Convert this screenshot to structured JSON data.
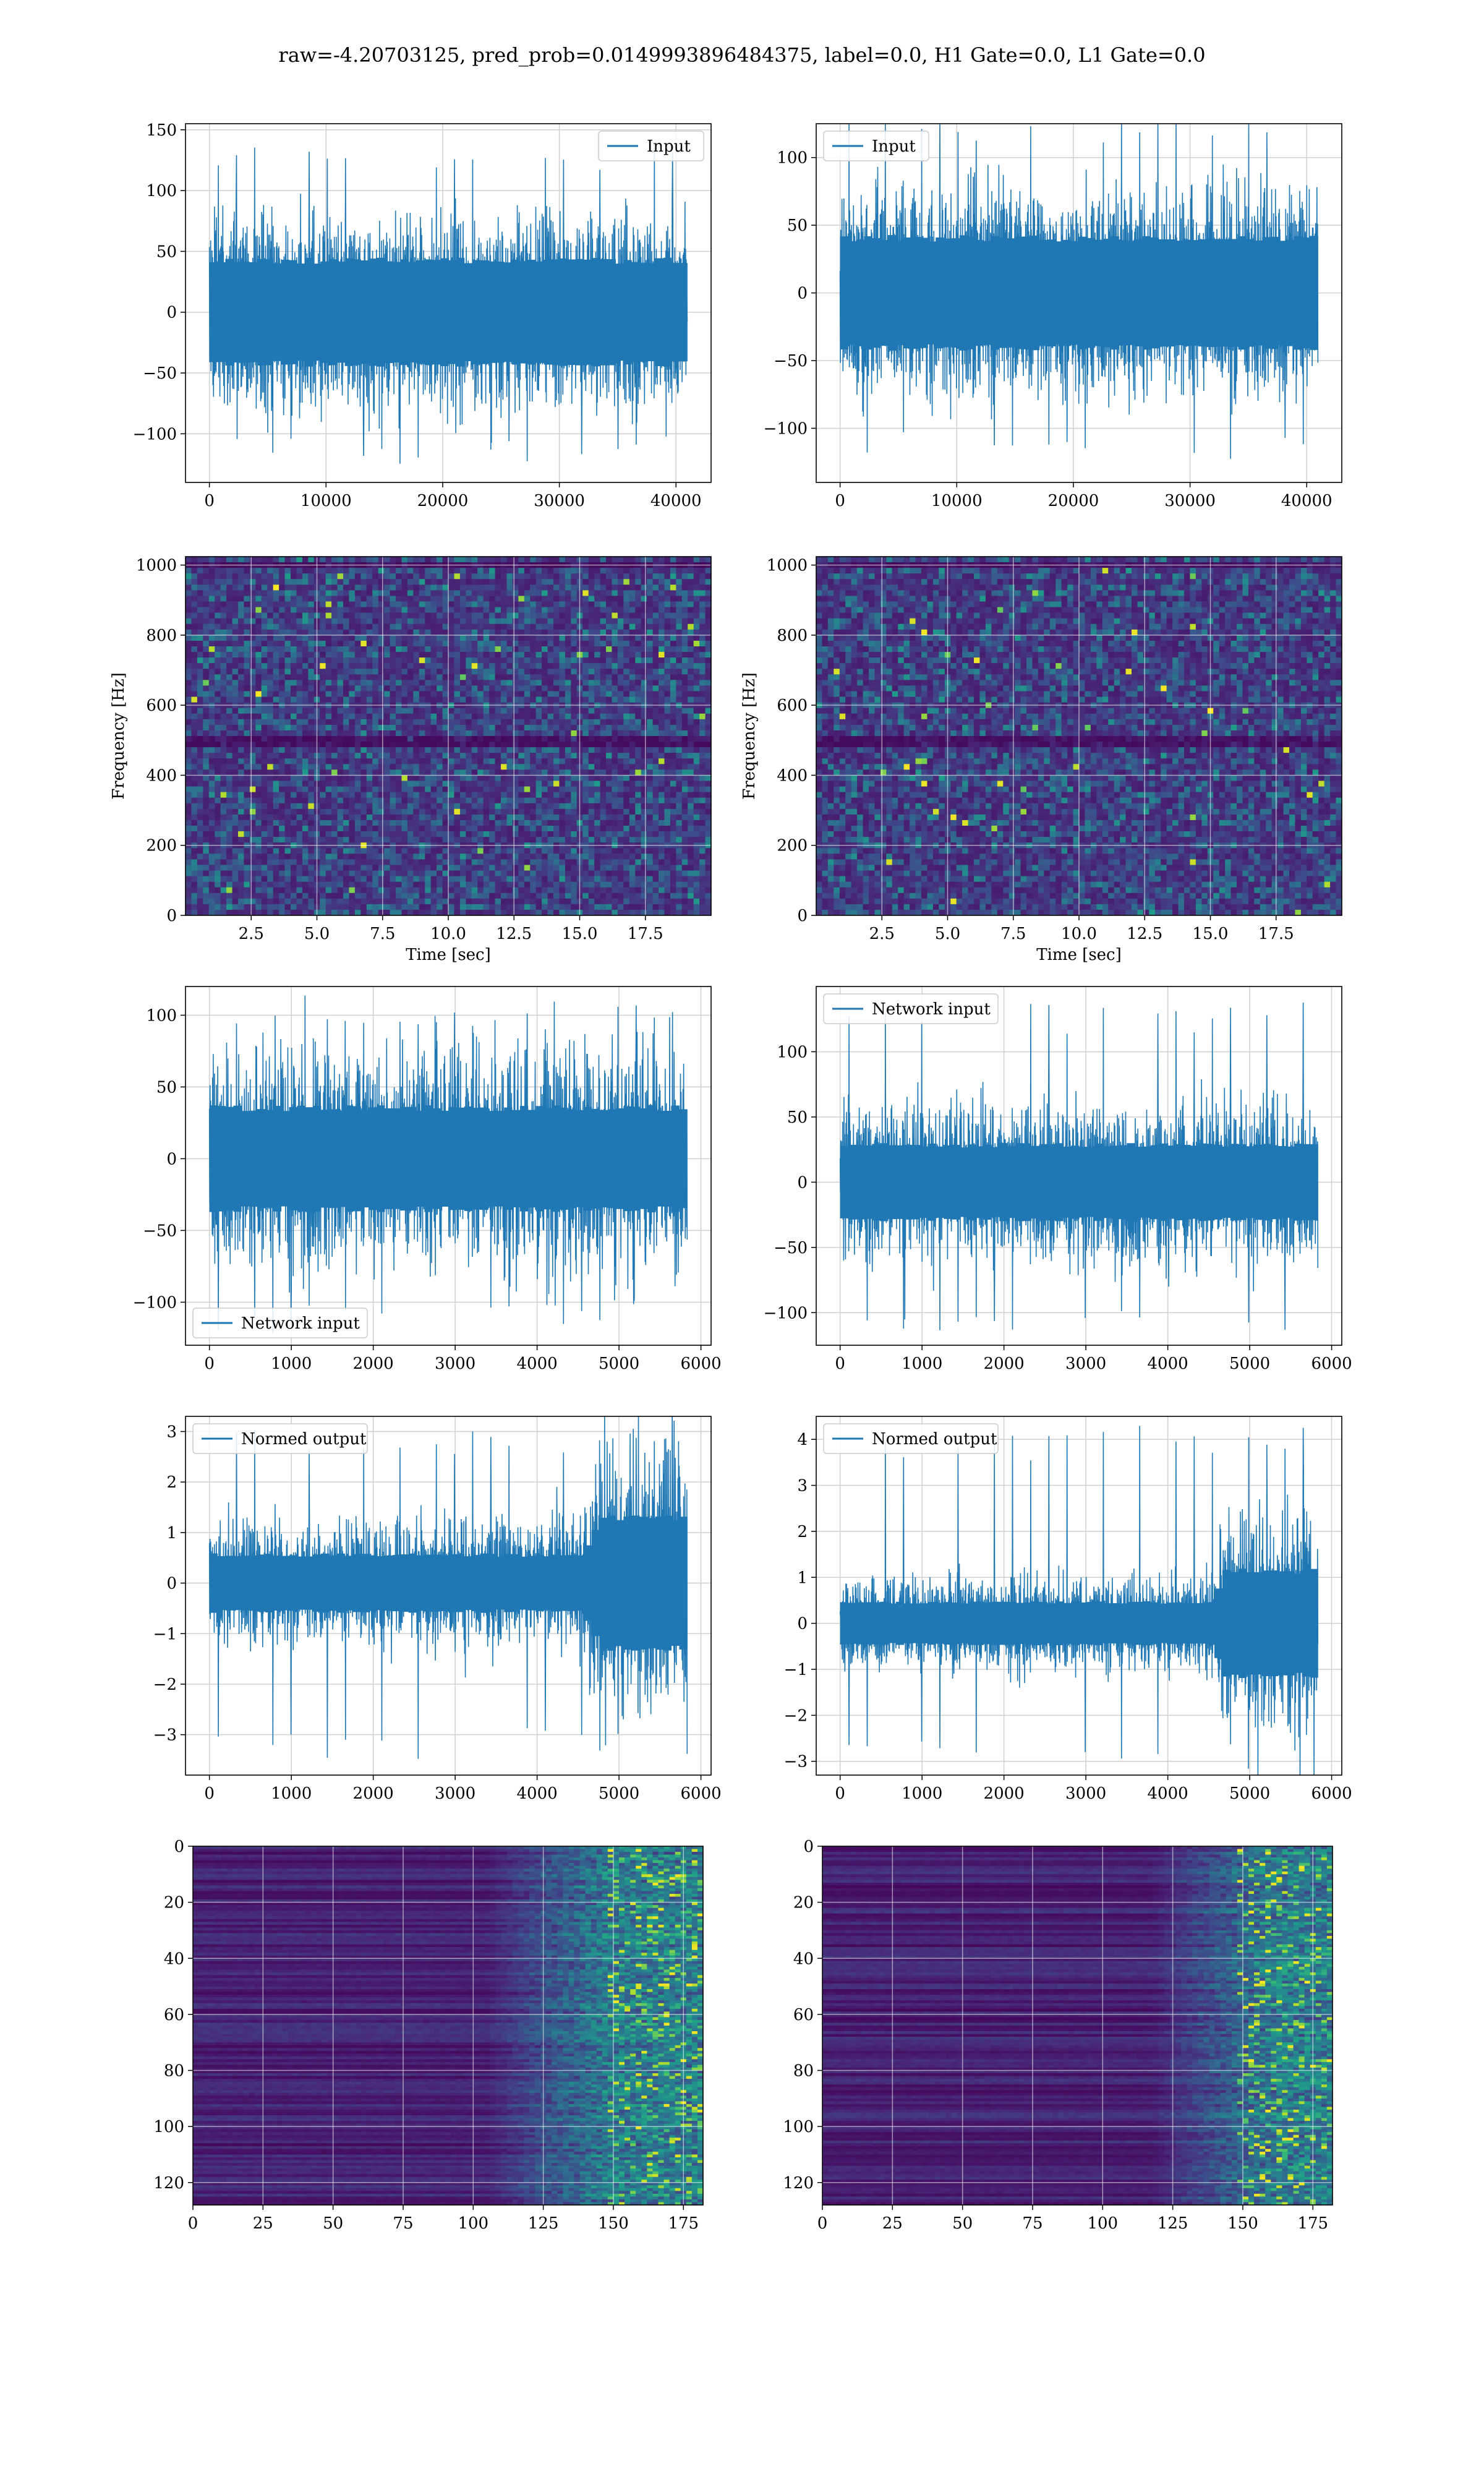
{
  "suptitle": "raw=-4.20703125, pred_prob=0.0149993896484375, label=0.0, H1 Gate=0.0, L1 Gate=0.0",
  "colors": {
    "series": "#1f77b4",
    "grid": "#d0d0d0",
    "axis": "#000000"
  },
  "chart_data": [
    {
      "type": "line",
      "panel": "row1-left",
      "legend": "Input",
      "legend_loc": "upper right",
      "x_range": [
        0,
        40960
      ],
      "xlim": [
        -2048,
        43008
      ],
      "ylim": [
        -140,
        155
      ],
      "xticks": [
        0,
        10000,
        20000,
        30000,
        40000
      ],
      "yticks": [
        -100,
        -50,
        0,
        50,
        100,
        150
      ],
      "signal": {
        "base_amp": 42,
        "burst_amp": 40,
        "spike_max": 140,
        "spike_min": -125,
        "trend": [
          [
            0,
            1.0
          ],
          [
            1,
            1.0
          ]
        ]
      },
      "grid": true,
      "xlabel": "",
      "ylabel": ""
    },
    {
      "type": "line",
      "panel": "row1-right",
      "legend": "Input",
      "legend_loc": "upper left",
      "x_range": [
        0,
        40960
      ],
      "xlim": [
        -2048,
        43008
      ],
      "ylim": [
        -140,
        125
      ],
      "xticks": [
        0,
        10000,
        20000,
        30000,
        40000
      ],
      "yticks": [
        -100,
        -50,
        0,
        50,
        100
      ],
      "signal": {
        "base_amp": 40,
        "burst_amp": 38,
        "spike_max": 135,
        "spike_min": -125,
        "trend": [
          [
            0,
            1.0
          ],
          [
            1,
            1.0
          ]
        ]
      },
      "grid": true,
      "xlabel": "",
      "ylabel": ""
    },
    {
      "type": "heatmap",
      "panel": "row2-left",
      "style": "spectrogram",
      "xlim": [
        0,
        20
      ],
      "ylim": [
        0,
        1024
      ],
      "xticks": [
        2.5,
        5.0,
        7.5,
        10.0,
        12.5,
        15.0,
        17.5
      ],
      "xticklabels": [
        "2.5",
        "5.0",
        "7.5",
        "10.0",
        "12.5",
        "15.0",
        "17.5"
      ],
      "yticks": [
        0,
        200,
        400,
        600,
        800,
        1000
      ],
      "xlabel": "Time [sec]",
      "ylabel": "Frequency [Hz]",
      "grid": true,
      "dark_bands_hz": [
        500,
        1000
      ]
    },
    {
      "type": "heatmap",
      "panel": "row2-right",
      "style": "spectrogram",
      "xlim": [
        0,
        20
      ],
      "ylim": [
        0,
        1024
      ],
      "xticks": [
        2.5,
        5.0,
        7.5,
        10.0,
        12.5,
        15.0,
        17.5
      ],
      "xticklabels": [
        "2.5",
        "5.0",
        "7.5",
        "10.0",
        "12.5",
        "15.0",
        "17.5"
      ],
      "yticks": [
        0,
        200,
        400,
        600,
        800,
        1000
      ],
      "xlabel": "Time [sec]",
      "ylabel": "Frequency [Hz]",
      "grid": true,
      "dark_bands_hz": [
        500,
        1000
      ]
    },
    {
      "type": "line",
      "panel": "row3-left",
      "legend": "Network input",
      "legend_loc": "lower left",
      "x_range": [
        0,
        5832
      ],
      "xlim": [
        -292,
        6124
      ],
      "ylim": [
        -130,
        120
      ],
      "xticks": [
        0,
        1000,
        2000,
        3000,
        4000,
        5000,
        6000
      ],
      "yticks": [
        -100,
        -50,
        0,
        50,
        100
      ],
      "signal": {
        "base_amp": 35,
        "burst_amp": 45,
        "spike_max": 108,
        "spike_min": -122,
        "trend": [
          [
            0,
            1.0
          ],
          [
            1,
            1.0
          ]
        ]
      },
      "grid": true,
      "xlabel": "",
      "ylabel": ""
    },
    {
      "type": "line",
      "panel": "row3-right",
      "legend": "Network input",
      "legend_loc": "upper left",
      "x_range": [
        0,
        5832
      ],
      "xlim": [
        -292,
        6124
      ],
      "ylim": [
        -125,
        150
      ],
      "xticks": [
        0,
        1000,
        2000,
        3000,
        4000,
        5000,
        6000
      ],
      "yticks": [
        -100,
        -50,
        0,
        50,
        100
      ],
      "signal": {
        "base_amp": 28,
        "burst_amp": 38,
        "spike_max": 138,
        "spike_min": -115,
        "trend": [
          [
            0,
            1.0
          ],
          [
            1,
            1.0
          ]
        ]
      },
      "grid": true,
      "xlabel": "",
      "ylabel": ""
    },
    {
      "type": "line",
      "panel": "row4-left",
      "legend": "Normed output",
      "legend_loc": "upper left",
      "x_range": [
        0,
        5832
      ],
      "xlim": [
        -292,
        6124
      ],
      "ylim": [
        -3.8,
        3.3
      ],
      "xticks": [
        0,
        1000,
        2000,
        3000,
        4000,
        5000,
        6000
      ],
      "yticks": [
        -3,
        -2,
        -1,
        0,
        1,
        2,
        3
      ],
      "signal": {
        "base_amp": 0.55,
        "burst_amp": 0.7,
        "spike_max": 3.05,
        "spike_min": -3.5,
        "trend": [
          [
            0,
            1.0
          ],
          [
            0.78,
            1.0
          ],
          [
            0.82,
            2.3
          ],
          [
            1.0,
            2.3
          ]
        ]
      },
      "grid": true,
      "xlabel": "",
      "ylabel": ""
    },
    {
      "type": "line",
      "panel": "row4-right",
      "legend": "Normed output",
      "legend_loc": "upper left",
      "x_range": [
        0,
        5832
      ],
      "xlim": [
        -292,
        6124
      ],
      "ylim": [
        -3.3,
        4.5
      ],
      "xticks": [
        0,
        1000,
        2000,
        3000,
        4000,
        5000,
        6000
      ],
      "yticks": [
        -3,
        -2,
        -1,
        0,
        1,
        2,
        3,
        4
      ],
      "signal": {
        "base_amp": 0.45,
        "burst_amp": 0.6,
        "spike_max": 4.3,
        "spike_min": -2.95,
        "trend": [
          [
            0,
            1.0
          ],
          [
            0.78,
            1.0
          ],
          [
            0.81,
            2.5
          ],
          [
            1.0,
            2.5
          ]
        ]
      },
      "grid": true,
      "xlabel": "",
      "ylabel": ""
    },
    {
      "type": "heatmap",
      "panel": "row5-left",
      "style": "feature-map",
      "xlim": [
        0,
        182
      ],
      "ylim": [
        128,
        0
      ],
      "xticks": [
        0,
        25,
        50,
        75,
        100,
        125,
        150,
        175
      ],
      "xticklabels": [
        "0",
        "25",
        "50",
        "75",
        "100",
        "125",
        "150",
        "175"
      ],
      "yticks": [
        0,
        20,
        40,
        60,
        80,
        100,
        120
      ],
      "xlabel": "",
      "ylabel": "",
      "grid": true,
      "onset_column": 105
    },
    {
      "type": "heatmap",
      "panel": "row5-right",
      "style": "feature-map",
      "xlim": [
        0,
        182
      ],
      "ylim": [
        128,
        0
      ],
      "xticks": [
        0,
        25,
        50,
        75,
        100,
        125,
        150,
        175
      ],
      "xticklabels": [
        "0",
        "25",
        "50",
        "75",
        "100",
        "125",
        "150",
        "175"
      ],
      "yticks": [
        0,
        20,
        40,
        60,
        80,
        100,
        120
      ],
      "xlabel": "",
      "ylabel": "",
      "grid": true,
      "onset_column": 118
    }
  ]
}
